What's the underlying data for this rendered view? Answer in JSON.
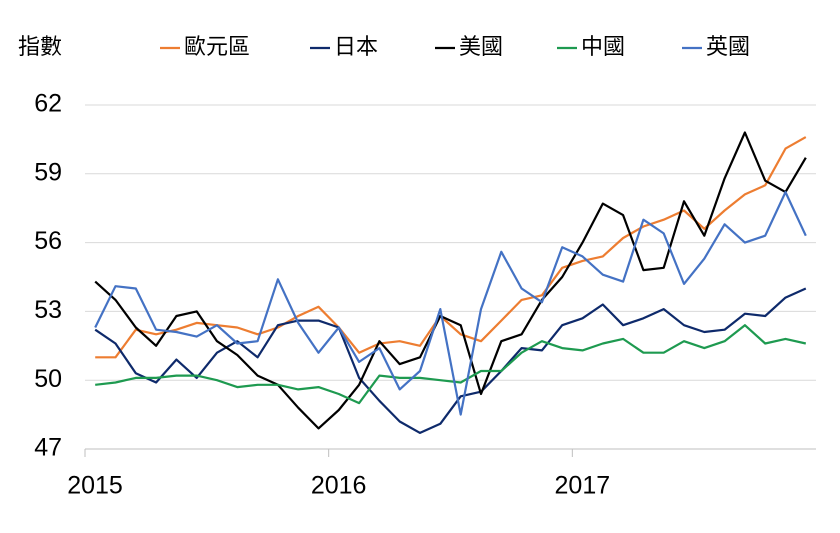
{
  "chart_data": {
    "type": "line",
    "y_label": "指數",
    "categories": [
      "2015",
      null,
      null,
      null,
      null,
      null,
      null,
      null,
      null,
      null,
      null,
      null,
      "2016",
      null,
      null,
      null,
      null,
      null,
      null,
      null,
      null,
      null,
      null,
      null,
      "2017",
      null,
      null,
      null,
      null,
      null,
      null,
      null,
      null,
      null,
      null,
      null
    ],
    "series": [
      {
        "name": "歐元區",
        "color": "#ed7d31",
        "values": [
          51.0,
          51.0,
          52.2,
          52.0,
          52.2,
          52.5,
          52.4,
          52.3,
          52.0,
          52.3,
          52.8,
          53.2,
          52.3,
          51.2,
          51.6,
          51.7,
          51.5,
          52.8,
          52.0,
          51.7,
          52.6,
          53.5,
          53.7,
          54.9,
          55.2,
          55.4,
          56.2,
          56.7,
          57.0,
          57.4,
          56.6,
          57.4,
          58.1,
          58.5,
          60.1,
          60.6
        ]
      },
      {
        "name": "日本",
        "color": "#0e2a6b",
        "values": [
          52.2,
          51.6,
          50.3,
          49.9,
          50.9,
          50.1,
          51.2,
          51.7,
          51.0,
          52.4,
          52.6,
          52.6,
          52.3,
          50.1,
          49.1,
          48.2,
          47.7,
          48.1,
          49.3,
          49.5,
          50.4,
          51.4,
          51.3,
          52.4,
          52.7,
          53.3,
          52.4,
          52.7,
          53.1,
          52.4,
          52.1,
          52.2,
          52.9,
          52.8,
          53.6,
          54.0
        ]
      },
      {
        "name": "美國",
        "color": "#000000",
        "values": [
          54.3,
          53.5,
          52.3,
          51.5,
          52.8,
          53.0,
          51.7,
          51.1,
          50.2,
          49.8,
          48.8,
          47.9,
          48.7,
          49.8,
          51.7,
          50.7,
          51.0,
          52.8,
          52.4,
          49.4,
          51.7,
          52.0,
          53.5,
          54.5,
          56.0,
          57.7,
          57.2,
          54.8,
          54.9,
          57.8,
          56.3,
          58.8,
          60.8,
          58.7,
          58.2,
          59.7
        ]
      },
      {
        "name": "中國",
        "color": "#1e9a50",
        "values": [
          49.8,
          49.9,
          50.1,
          50.1,
          50.2,
          50.2,
          50.0,
          49.7,
          49.8,
          49.8,
          49.6,
          49.7,
          49.4,
          49.0,
          50.2,
          50.1,
          50.1,
          50.0,
          49.9,
          50.4,
          50.4,
          51.2,
          51.7,
          51.4,
          51.3,
          51.6,
          51.8,
          51.2,
          51.2,
          51.7,
          51.4,
          51.7,
          52.4,
          51.6,
          51.8,
          51.6
        ]
      },
      {
        "name": "英國",
        "color": "#4472c4",
        "values": [
          52.3,
          54.1,
          54.0,
          52.2,
          52.1,
          51.9,
          52.4,
          51.6,
          51.7,
          54.4,
          52.5,
          51.2,
          52.3,
          50.8,
          51.4,
          49.6,
          50.4,
          53.1,
          48.5,
          53.1,
          55.6,
          54.0,
          53.4,
          55.8,
          55.4,
          54.6,
          54.3,
          57.0,
          56.4,
          54.2,
          55.3,
          56.8,
          56.0,
          56.3,
          58.2,
          56.3
        ]
      }
    ],
    "ylim": [
      47,
      62
    ],
    "yticks": [
      47,
      50,
      53,
      56,
      59,
      62
    ],
    "grid": true
  }
}
